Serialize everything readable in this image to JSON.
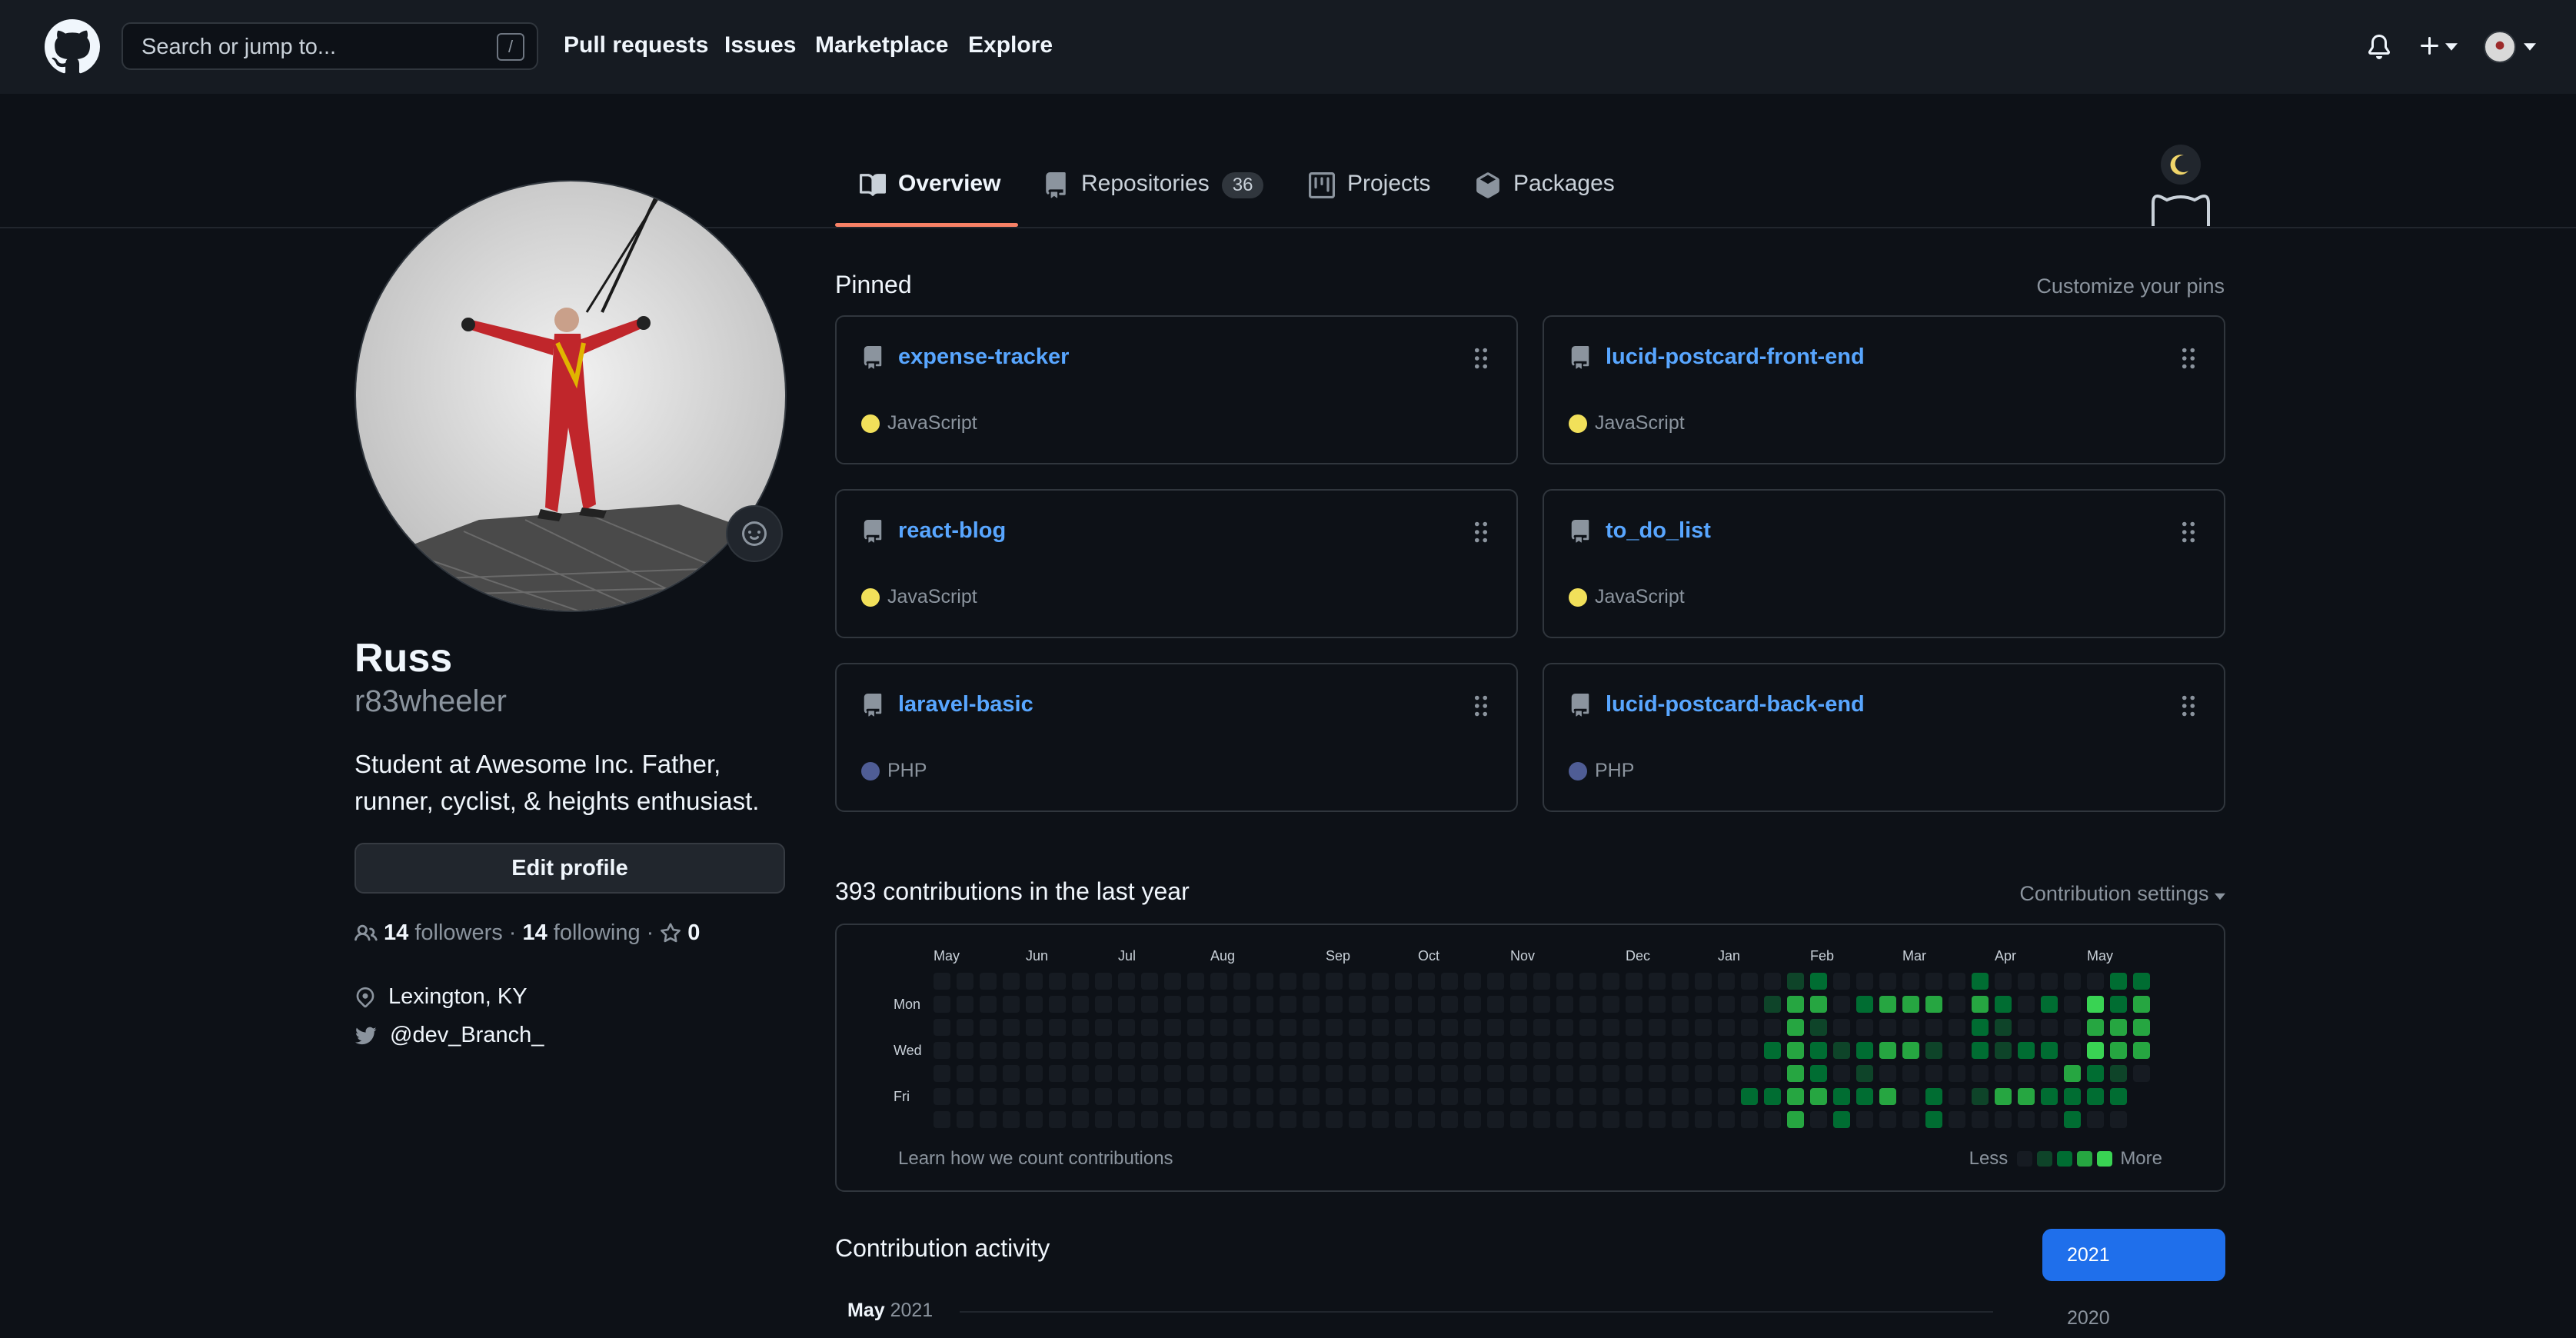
{
  "header": {
    "search_placeholder": "Search or jump to...",
    "search_shortcut": "/",
    "nav": [
      "Pull requests",
      "Issues",
      "Marketplace",
      "Explore"
    ]
  },
  "tabs": {
    "overview": "Overview",
    "repositories": "Repositories",
    "repositories_count": "36",
    "projects": "Projects",
    "packages": "Packages"
  },
  "profile": {
    "name": "Russ",
    "login": "r83wheeler",
    "bio": "Student at Awesome Inc. Father, runner, cyclist, & heights enthusiast.",
    "edit_button": "Edit profile",
    "followers_count": "14",
    "followers_label": "followers",
    "following_count": "14",
    "following_label": "following",
    "stars_count": "0",
    "location": "Lexington, KY",
    "twitter": "@dev_Branch_"
  },
  "pinned": {
    "title": "Pinned",
    "customize": "Customize your pins",
    "repos": [
      {
        "name": "expense-tracker",
        "language": "JavaScript",
        "lang_color": "#f1e05a"
      },
      {
        "name": "lucid-postcard-front-end",
        "language": "JavaScript",
        "lang_color": "#f1e05a"
      },
      {
        "name": "react-blog",
        "language": "JavaScript",
        "lang_color": "#f1e05a"
      },
      {
        "name": "to_do_list",
        "language": "JavaScript",
        "lang_color": "#f1e05a"
      },
      {
        "name": "laravel-basic",
        "language": "PHP",
        "lang_color": "#4F5D95"
      },
      {
        "name": "lucid-postcard-back-end",
        "language": "PHP",
        "lang_color": "#4F5D95"
      }
    ]
  },
  "contributions": {
    "title": "393 contributions in the last year",
    "settings": "Contribution settings",
    "months": [
      "May",
      "Jun",
      "Jul",
      "Aug",
      "Sep",
      "Oct",
      "Nov",
      "Dec",
      "Jan",
      "Feb",
      "Mar",
      "Apr",
      "May"
    ],
    "day_labels": [
      "Mon",
      "Wed",
      "Fri"
    ],
    "learn_link": "Learn how we count contributions",
    "legend_less": "Less",
    "legend_more": "More",
    "level_colors": [
      "#161b22",
      "#0e4429",
      "#006d32",
      "#26a641",
      "#39d353"
    ],
    "active_weeks": [
      [
        0,
        0,
        0,
        0,
        0,
        0,
        0
      ],
      [
        0,
        0,
        0,
        0,
        0,
        2,
        0
      ],
      [
        0,
        1,
        0,
        2,
        0,
        2,
        0
      ],
      [
        1,
        3,
        3,
        3,
        3,
        3,
        3
      ],
      [
        2,
        3,
        1,
        2,
        2,
        3,
        0
      ],
      [
        0,
        0,
        0,
        1,
        0,
        2,
        2
      ],
      [
        0,
        2,
        0,
        2,
        1,
        2,
        0
      ],
      [
        0,
        3,
        0,
        3,
        0,
        3,
        0
      ],
      [
        0,
        3,
        0,
        3,
        0,
        0,
        0
      ],
      [
        0,
        3,
        0,
        1,
        0,
        2,
        2
      ],
      [
        0,
        0,
        0,
        0,
        0,
        0,
        0
      ],
      [
        2,
        3,
        2,
        2,
        0,
        1,
        0
      ],
      [
        0,
        2,
        1,
        1,
        0,
        3,
        0
      ],
      [
        0,
        0,
        0,
        2,
        0,
        3,
        0
      ],
      [
        0,
        2,
        0,
        2,
        0,
        2,
        0
      ],
      [
        0,
        0,
        0,
        0,
        3,
        2,
        2
      ],
      [
        0,
        4,
        3,
        4,
        2,
        2,
        0
      ],
      [
        2,
        2,
        3,
        3,
        1,
        2,
        0
      ],
      [
        2,
        3,
        3,
        3,
        0,
        0,
        0
      ]
    ]
  },
  "activity": {
    "title": "Contribution activity",
    "month": "May",
    "year": "2021",
    "years": [
      "2021",
      "2020"
    ]
  }
}
